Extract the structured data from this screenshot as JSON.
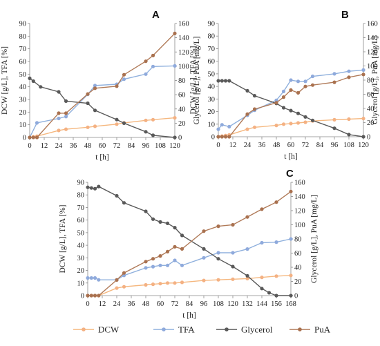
{
  "colors": {
    "DCW": "#f5b77e",
    "TFA": "#8fb0dd",
    "Glycerol": "#595959",
    "PuA": "#b07a58",
    "DCW_marker": "#f4b183",
    "TFA_marker": "#8faadc",
    "Glycerol_marker": "#595959",
    "PuA_marker": "#a9714f"
  },
  "legend": {
    "placement": "bottom",
    "entries": [
      "DCW",
      "TFA",
      "Glycerol",
      "PuA"
    ]
  },
  "chart_data": [
    {
      "panel": "A",
      "type": "line",
      "xlabel": "t [h]",
      "ylabel_left": "DCW [g/L], TFA [%]",
      "ylabel_right": "Glycerol [g/L], PuA [mg/L]",
      "xlim": [
        0,
        120
      ],
      "ylim_left": [
        0,
        90
      ],
      "ylim_right": [
        0,
        160
      ],
      "xticks": [
        0,
        12,
        24,
        36,
        48,
        60,
        72,
        84,
        96,
        108,
        120
      ],
      "yticks_left": [
        0,
        10,
        20,
        30,
        40,
        50,
        60,
        70,
        80,
        90
      ],
      "yticks_right": [
        0,
        20,
        40,
        60,
        80,
        100,
        120,
        140,
        160
      ],
      "grid": false,
      "series": [
        {
          "name": "DCW",
          "axis": "left",
          "x": [
            0,
            3,
            6,
            24,
            30,
            48,
            54,
            72,
            78,
            96,
            102,
            120
          ],
          "y": [
            0,
            0.5,
            1,
            5.5,
            6.5,
            8,
            8.8,
            10.5,
            11.5,
            13.5,
            14,
            15.5
          ]
        },
        {
          "name": "TFA",
          "axis": "left",
          "x": [
            0,
            6,
            24,
            30,
            48,
            54,
            72,
            78,
            96,
            102,
            120
          ],
          "y": [
            0,
            11.5,
            15,
            16.5,
            34,
            41,
            42,
            46,
            50,
            56,
            56.5
          ]
        },
        {
          "name": "Glycerol",
          "axis": "right",
          "x": [
            0,
            3,
            9,
            24,
            30,
            48,
            54,
            72,
            78,
            96,
            102,
            120
          ],
          "y": [
            83,
            79,
            71,
            64,
            51,
            48,
            38,
            25,
            20,
            8,
            3,
            0
          ]
        },
        {
          "name": "PuA",
          "axis": "right",
          "x": [
            0,
            3,
            6,
            24,
            30,
            48,
            54,
            72,
            78,
            96,
            102,
            120
          ],
          "y": [
            0,
            0,
            0,
            34,
            34,
            61,
            69,
            72,
            88,
            107,
            115,
            146
          ]
        }
      ]
    },
    {
      "panel": "B",
      "type": "line",
      "xlabel": "t [h]",
      "ylabel_left": "DCW [g/L], TFA [%]",
      "ylabel_right": "Glycerol [g/L], PuA [mg/L]",
      "xlim": [
        0,
        120
      ],
      "ylim_left": [
        0,
        90
      ],
      "ylim_right": [
        0,
        160
      ],
      "xticks": [
        0,
        12,
        24,
        36,
        48,
        60,
        72,
        84,
        96,
        108,
        120
      ],
      "yticks_left": [
        0,
        10,
        20,
        30,
        40,
        50,
        60,
        70,
        80,
        90
      ],
      "yticks_right": [
        0,
        20,
        40,
        60,
        80,
        100,
        120,
        140,
        160
      ],
      "grid": false,
      "series": [
        {
          "name": "DCW",
          "axis": "left",
          "x": [
            0,
            3,
            6,
            9,
            24,
            30,
            48,
            54,
            60,
            66,
            72,
            78,
            96,
            108,
            120
          ],
          "y": [
            0,
            0.5,
            1,
            1.5,
            6,
            7.5,
            9,
            10,
            10.5,
            11,
            11.5,
            12.5,
            13.5,
            14,
            14.5
          ]
        },
        {
          "name": "TFA",
          "axis": "left",
          "x": [
            0,
            3,
            9,
            24,
            30,
            48,
            54,
            60,
            66,
            72,
            78,
            96,
            108,
            120
          ],
          "y": [
            6,
            9.5,
            8,
            17,
            21,
            29,
            36,
            45,
            44,
            44,
            48,
            50,
            52,
            53
          ]
        },
        {
          "name": "Glycerol",
          "axis": "right",
          "x": [
            0,
            3,
            6,
            9,
            24,
            30,
            48,
            54,
            60,
            66,
            72,
            78,
            96,
            108,
            120
          ],
          "y": [
            79,
            79,
            79,
            79,
            65,
            58,
            47,
            41,
            37,
            33,
            28,
            23,
            12,
            3,
            0
          ]
        },
        {
          "name": "PuA",
          "axis": "right",
          "x": [
            0,
            3,
            6,
            9,
            24,
            30,
            48,
            54,
            60,
            66,
            72,
            78,
            96,
            108,
            120
          ],
          "y": [
            0,
            0,
            0,
            0,
            32,
            39,
            48,
            56,
            66,
            62,
            71,
            73,
            77,
            84,
            88
          ]
        }
      ]
    },
    {
      "panel": "C",
      "type": "line",
      "xlabel": "t [h]",
      "ylabel_left": "DCW [g/L], TFA [%]",
      "ylabel_right": "Glycerol [g/L], PuA [mg/L]",
      "xlim": [
        0,
        168
      ],
      "ylim_left": [
        0,
        90
      ],
      "ylim_right": [
        0,
        160
      ],
      "xticks": [
        0,
        12,
        24,
        36,
        48,
        60,
        72,
        84,
        96,
        108,
        120,
        132,
        144,
        156,
        168
      ],
      "yticks_left": [
        0,
        10,
        20,
        30,
        40,
        50,
        60,
        70,
        80,
        90
      ],
      "yticks_right": [
        0,
        20,
        40,
        60,
        80,
        100,
        120,
        140,
        160
      ],
      "grid": false,
      "series": [
        {
          "name": "DCW",
          "axis": "left",
          "x": [
            0,
            3,
            6,
            9,
            24,
            30,
            48,
            54,
            60,
            66,
            72,
            78,
            96,
            108,
            120,
            132,
            144,
            156,
            168
          ],
          "y": [
            0,
            0,
            0,
            0,
            6,
            7,
            8.5,
            9,
            9.5,
            10,
            10,
            10.5,
            12,
            12.5,
            13,
            13.5,
            14.5,
            15.5,
            16
          ]
        },
        {
          "name": "TFA",
          "axis": "left",
          "x": [
            0,
            3,
            6,
            9,
            24,
            30,
            48,
            54,
            60,
            66,
            72,
            78,
            96,
            108,
            120,
            132,
            144,
            156,
            168
          ],
          "y": [
            14,
            14,
            14,
            12.5,
            12.5,
            16,
            22,
            23,
            24,
            24,
            28,
            24,
            30,
            34,
            34,
            37,
            42,
            42.5,
            45
          ]
        },
        {
          "name": "Glycerol",
          "axis": "right",
          "x": [
            0,
            3,
            6,
            9,
            24,
            30,
            48,
            54,
            60,
            66,
            72,
            78,
            96,
            108,
            120,
            132,
            144,
            150,
            156,
            168
          ],
          "y": [
            153,
            152,
            151,
            154,
            141,
            131,
            119,
            108,
            104,
            102,
            96,
            85,
            66,
            52,
            41,
            28,
            10,
            4,
            0,
            0
          ]
        },
        {
          "name": "PuA",
          "axis": "right",
          "x": [
            0,
            3,
            6,
            9,
            24,
            30,
            48,
            54,
            60,
            66,
            72,
            78,
            96,
            108,
            120,
            132,
            144,
            156,
            168
          ],
          "y": [
            0,
            0,
            0,
            0,
            22,
            32,
            48,
            52,
            56,
            62,
            69,
            66,
            91,
            98,
            100,
            111,
            122,
            132,
            147
          ]
        }
      ]
    }
  ]
}
